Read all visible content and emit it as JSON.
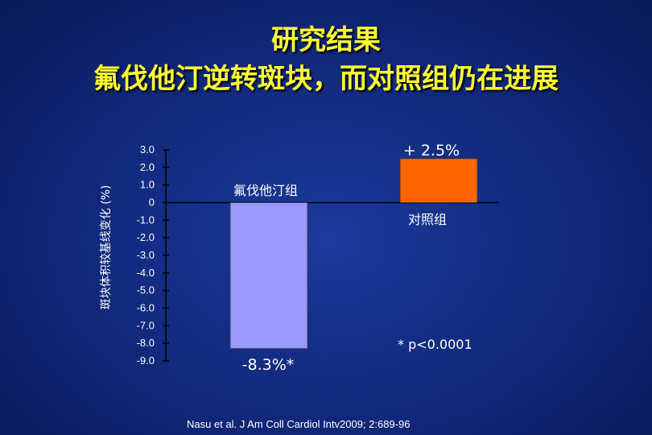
{
  "title_line1": "研究结果",
  "title_line2": "氟伐他汀逆转斑块，而对照组仍在进展",
  "citation": "Nasu et al. J Am Coll Cardiol Intv2009; 2:689-96",
  "chart_data": {
    "type": "bar",
    "ylabel": "斑块体积较基线变化 (%)",
    "ylim": [
      -9.0,
      3.0
    ],
    "yticks": [
      "3.0",
      "2.0",
      "1.0",
      "0",
      "-1.0",
      "-2.0",
      "-3.0",
      "-4.0",
      "-5.0",
      "-6.0",
      "-7.0",
      "-8.0",
      "-9.0"
    ],
    "categories": [
      "氟伐他汀组",
      "对照组"
    ],
    "values": [
      -8.3,
      2.5
    ],
    "value_labels": [
      "-8.3%*",
      "+ 2.5%"
    ],
    "colors": [
      "#9999ff",
      "#ff6600"
    ],
    "footnote": "* p<0.0001"
  }
}
